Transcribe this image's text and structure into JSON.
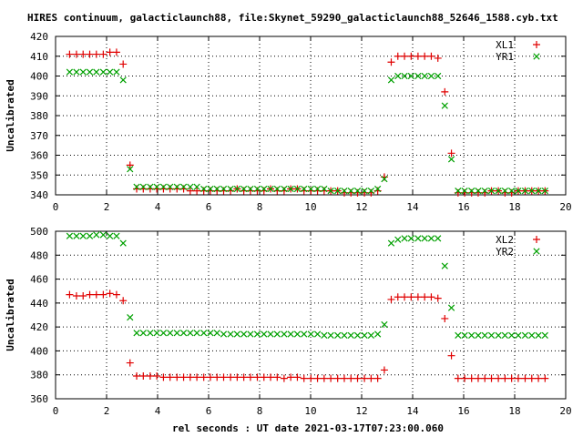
{
  "title": "HIRES continuum, galacticlaunch88, file:Skynet_59290_galacticlaunch88_52646_1588.cyb.txt",
  "xlabel": "rel seconds : UT date 2021-03-17T07:23:00.060",
  "colors": {
    "series1": "#e00000",
    "series2": "#00a000",
    "frame": "#000000",
    "background": "#ffffff"
  },
  "chart_data": [
    {
      "type": "scatter",
      "ylabel": "Uncalibrated",
      "xlim": [
        0,
        20
      ],
      "ylim": [
        340,
        420
      ],
      "xticks": [
        0,
        2,
        4,
        6,
        8,
        10,
        12,
        14,
        16,
        18,
        20
      ],
      "yticks": [
        340,
        350,
        360,
        370,
        380,
        390,
        400,
        410,
        420
      ],
      "grid": true,
      "legend_position": "top-right",
      "series": [
        {
          "name": "XL1",
          "marker": "plus",
          "color": "#e00000",
          "x": [
            0.55,
            0.82,
            1.08,
            1.34,
            1.6,
            1.87,
            2.13,
            2.39,
            2.65,
            2.92,
            3.18,
            3.44,
            3.71,
            3.97,
            4.23,
            4.49,
            4.76,
            5.02,
            5.28,
            5.54,
            5.81,
            6.07,
            6.33,
            6.59,
            6.86,
            7.12,
            7.38,
            7.64,
            7.91,
            8.17,
            8.43,
            8.69,
            8.96,
            9.22,
            9.48,
            9.74,
            10.01,
            10.27,
            10.53,
            10.79,
            11.06,
            11.32,
            11.58,
            11.84,
            12.11,
            12.37,
            12.63,
            12.89,
            13.16,
            13.42,
            13.68,
            13.94,
            14.21,
            14.47,
            14.73,
            14.99,
            15.26,
            15.52,
            15.78,
            16.04,
            16.31,
            16.57,
            16.83,
            17.09,
            17.36,
            17.62,
            17.88,
            18.14,
            18.41,
            18.67,
            18.93,
            19.19
          ],
          "y": [
            411,
            411,
            411,
            411,
            411,
            411,
            412,
            412,
            406,
            355,
            343,
            343,
            343,
            343,
            343,
            343,
            343,
            343,
            342,
            342,
            342,
            342,
            342,
            342,
            342,
            343,
            342,
            342,
            342,
            342,
            343,
            342,
            342,
            343,
            343,
            342,
            342,
            342,
            342,
            342,
            342,
            341,
            341,
            341,
            341,
            341,
            342,
            349,
            407,
            410,
            410,
            410,
            410,
            410,
            410,
            409,
            392,
            361,
            341,
            341,
            341,
            341,
            341,
            342,
            342,
            341,
            341,
            342,
            342,
            342,
            342,
            342
          ]
        },
        {
          "name": "YR1",
          "marker": "cross",
          "color": "#00a000",
          "x": [
            0.55,
            0.82,
            1.08,
            1.34,
            1.6,
            1.87,
            2.13,
            2.39,
            2.65,
            2.92,
            3.18,
            3.44,
            3.71,
            3.97,
            4.23,
            4.49,
            4.76,
            5.02,
            5.28,
            5.54,
            5.81,
            6.07,
            6.33,
            6.59,
            6.86,
            7.12,
            7.38,
            7.64,
            7.91,
            8.17,
            8.43,
            8.69,
            8.96,
            9.22,
            9.48,
            9.74,
            10.01,
            10.27,
            10.53,
            10.79,
            11.06,
            11.32,
            11.58,
            11.84,
            12.11,
            12.37,
            12.63,
            12.89,
            13.16,
            13.42,
            13.68,
            13.94,
            14.21,
            14.47,
            14.73,
            14.99,
            15.26,
            15.52,
            15.78,
            16.04,
            16.31,
            16.57,
            16.83,
            17.09,
            17.36,
            17.62,
            17.88,
            18.14,
            18.41,
            18.67,
            18.93,
            19.19
          ],
          "y": [
            402,
            402,
            402,
            402,
            402,
            402,
            402,
            402,
            398,
            353,
            344,
            344,
            344,
            344,
            344,
            344,
            344,
            344,
            344,
            344,
            343,
            343,
            343,
            343,
            343,
            343,
            343,
            343,
            343,
            343,
            343,
            343,
            343,
            343,
            343,
            343,
            343,
            343,
            343,
            342,
            342,
            342,
            342,
            342,
            342,
            342,
            343,
            348,
            398,
            400,
            400,
            400,
            400,
            400,
            400,
            400,
            385,
            358,
            342,
            342,
            342,
            342,
            342,
            342,
            342,
            342,
            342,
            342,
            342,
            342,
            342,
            342
          ]
        }
      ]
    },
    {
      "type": "scatter",
      "ylabel": "Uncalibrated",
      "xlabel": "rel seconds : UT date 2021-03-17T07:23:00.060",
      "xlim": [
        0,
        20
      ],
      "ylim": [
        360,
        500
      ],
      "xticks": [
        0,
        2,
        4,
        6,
        8,
        10,
        12,
        14,
        16,
        18,
        20
      ],
      "yticks": [
        360,
        380,
        400,
        420,
        440,
        460,
        480,
        500
      ],
      "grid": true,
      "legend_position": "top-right",
      "series": [
        {
          "name": "XL2",
          "marker": "plus",
          "color": "#e00000",
          "x": [
            0.55,
            0.82,
            1.08,
            1.34,
            1.6,
            1.87,
            2.13,
            2.39,
            2.65,
            2.92,
            3.18,
            3.44,
            3.71,
            3.97,
            4.23,
            4.49,
            4.76,
            5.02,
            5.28,
            5.54,
            5.81,
            6.07,
            6.33,
            6.59,
            6.86,
            7.12,
            7.38,
            7.64,
            7.91,
            8.17,
            8.43,
            8.69,
            8.96,
            9.22,
            9.48,
            9.74,
            10.01,
            10.27,
            10.53,
            10.79,
            11.06,
            11.32,
            11.58,
            11.84,
            12.11,
            12.37,
            12.63,
            12.89,
            13.16,
            13.42,
            13.68,
            13.94,
            14.21,
            14.47,
            14.73,
            14.99,
            15.26,
            15.52,
            15.78,
            16.04,
            16.31,
            16.57,
            16.83,
            17.09,
            17.36,
            17.62,
            17.88,
            18.14,
            18.41,
            18.67,
            18.93,
            19.19
          ],
          "y": [
            447,
            446,
            446,
            447,
            447,
            447,
            448,
            447,
            442,
            390,
            379,
            379,
            379,
            379,
            378,
            378,
            378,
            378,
            378,
            378,
            378,
            378,
            378,
            378,
            378,
            378,
            378,
            378,
            378,
            378,
            378,
            378,
            377,
            378,
            378,
            377,
            377,
            377,
            377,
            377,
            377,
            377,
            377,
            377,
            377,
            377,
            377,
            384,
            443,
            445,
            445,
            445,
            445,
            445,
            445,
            444,
            427,
            396,
            377,
            377,
            377,
            377,
            377,
            377,
            377,
            377,
            377,
            377,
            377,
            377,
            377,
            377
          ]
        },
        {
          "name": "YR2",
          "marker": "cross",
          "color": "#00a000",
          "x": [
            0.55,
            0.82,
            1.08,
            1.34,
            1.6,
            1.87,
            2.13,
            2.39,
            2.65,
            2.92,
            3.18,
            3.44,
            3.71,
            3.97,
            4.23,
            4.49,
            4.76,
            5.02,
            5.28,
            5.54,
            5.81,
            6.07,
            6.33,
            6.59,
            6.86,
            7.12,
            7.38,
            7.64,
            7.91,
            8.17,
            8.43,
            8.69,
            8.96,
            9.22,
            9.48,
            9.74,
            10.01,
            10.27,
            10.53,
            10.79,
            11.06,
            11.32,
            11.58,
            11.84,
            12.11,
            12.37,
            12.63,
            12.89,
            13.16,
            13.42,
            13.68,
            13.94,
            14.21,
            14.47,
            14.73,
            14.99,
            15.26,
            15.52,
            15.78,
            16.04,
            16.31,
            16.57,
            16.83,
            17.09,
            17.36,
            17.62,
            17.88,
            18.14,
            18.41,
            18.67,
            18.93,
            19.19
          ],
          "y": [
            496,
            496,
            496,
            496,
            497,
            497,
            496,
            496,
            490,
            428,
            415,
            415,
            415,
            415,
            415,
            415,
            415,
            415,
            415,
            415,
            415,
            415,
            415,
            414,
            414,
            414,
            414,
            414,
            414,
            414,
            414,
            414,
            414,
            414,
            414,
            414,
            414,
            414,
            413,
            413,
            413,
            413,
            413,
            413,
            413,
            413,
            414,
            422,
            490,
            493,
            494,
            494,
            494,
            494,
            494,
            494,
            471,
            436,
            413,
            413,
            413,
            413,
            413,
            413,
            413,
            413,
            413,
            413,
            413,
            413,
            413,
            413
          ]
        }
      ]
    }
  ]
}
